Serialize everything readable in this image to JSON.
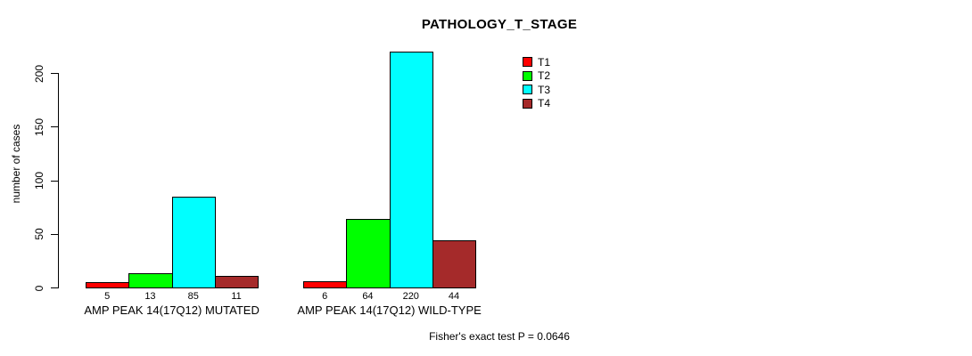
{
  "chart_data": {
    "type": "bar",
    "title": "PATHOLOGY_T_STAGE",
    "ylabel": "number of cases",
    "xlabel": "",
    "yticks": [
      0,
      50,
      100,
      150,
      200
    ],
    "ylim": [
      0,
      224
    ],
    "grid": false,
    "legend_position": "top-right",
    "categories": [
      "AMP PEAK 14(17Q12) MUTATED",
      "AMP PEAK 14(17Q12) WILD-TYPE"
    ],
    "series": [
      {
        "name": "T1",
        "color": "#FF0000",
        "values": [
          5,
          6
        ]
      },
      {
        "name": "T2",
        "color": "#00FF00",
        "values": [
          13,
          64
        ]
      },
      {
        "name": "T3",
        "color": "#00FFFF",
        "values": [
          85,
          220
        ]
      },
      {
        "name": "T4",
        "color": "#A52A2A",
        "values": [
          11,
          44
        ]
      }
    ],
    "footnote": "Fisher's exact test P = 0.0646",
    "axis_color": "#000000",
    "background_color": "#FFFFFF"
  }
}
